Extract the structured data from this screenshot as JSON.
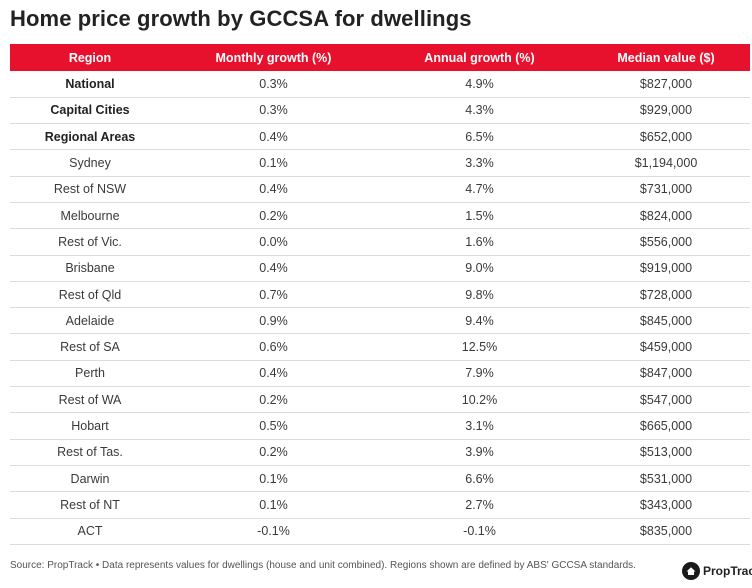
{
  "title": "Home price growth by GCCSA for dwellings",
  "chart_data": {
    "type": "table",
    "title": "Home price growth by GCCSA for dwellings",
    "columns": [
      "Region",
      "Monthly growth (%)",
      "Annual growth (%)",
      "Median value ($)"
    ],
    "rows": [
      {
        "region": "National",
        "monthly": "0.3%",
        "annual": "4.9%",
        "median": "$827,000",
        "bold": true
      },
      {
        "region": "Capital Cities",
        "monthly": "0.3%",
        "annual": "4.3%",
        "median": "$929,000",
        "bold": true
      },
      {
        "region": "Regional Areas",
        "monthly": "0.4%",
        "annual": "6.5%",
        "median": "$652,000",
        "bold": true
      },
      {
        "region": "Sydney",
        "monthly": "0.1%",
        "annual": "3.3%",
        "median": "$1,194,000",
        "bold": false
      },
      {
        "region": "Rest of NSW",
        "monthly": "0.4%",
        "annual": "4.7%",
        "median": "$731,000",
        "bold": false
      },
      {
        "region": "Melbourne",
        "monthly": "0.2%",
        "annual": "1.5%",
        "median": "$824,000",
        "bold": false
      },
      {
        "region": "Rest of Vic.",
        "monthly": "0.0%",
        "annual": "1.6%",
        "median": "$556,000",
        "bold": false
      },
      {
        "region": "Brisbane",
        "monthly": "0.4%",
        "annual": "9.0%",
        "median": "$919,000",
        "bold": false
      },
      {
        "region": "Rest of Qld",
        "monthly": "0.7%",
        "annual": "9.8%",
        "median": "$728,000",
        "bold": false
      },
      {
        "region": "Adelaide",
        "monthly": "0.9%",
        "annual": "9.4%",
        "median": "$845,000",
        "bold": false
      },
      {
        "region": "Rest of SA",
        "monthly": "0.6%",
        "annual": "12.5%",
        "median": "$459,000",
        "bold": false
      },
      {
        "region": "Perth",
        "monthly": "0.4%",
        "annual": "7.9%",
        "median": "$847,000",
        "bold": false
      },
      {
        "region": "Rest of WA",
        "monthly": "0.2%",
        "annual": "10.2%",
        "median": "$547,000",
        "bold": false
      },
      {
        "region": "Hobart",
        "monthly": "0.5%",
        "annual": "3.1%",
        "median": "$665,000",
        "bold": false
      },
      {
        "region": "Rest of Tas.",
        "monthly": "0.2%",
        "annual": "3.9%",
        "median": "$513,000",
        "bold": false
      },
      {
        "region": "Darwin",
        "monthly": "0.1%",
        "annual": "6.6%",
        "median": "$531,000",
        "bold": false
      },
      {
        "region": "Rest of NT",
        "monthly": "0.1%",
        "annual": "2.7%",
        "median": "$343,000",
        "bold": false
      },
      {
        "region": "ACT",
        "monthly": "-0.1%",
        "annual": "-0.1%",
        "median": "$835,000",
        "bold": false
      }
    ]
  },
  "footnote": "Source: PropTrack • Data represents values for dwellings (house and unit combined). Regions shown are defined by ABS' GCCSA standards.",
  "brand": {
    "name": "PropTrack",
    "icon": "proptrack-logo-icon"
  },
  "colors": {
    "header_bg": "#e8112d",
    "header_text": "#ffffff",
    "row_border": "#dcdcdc"
  }
}
